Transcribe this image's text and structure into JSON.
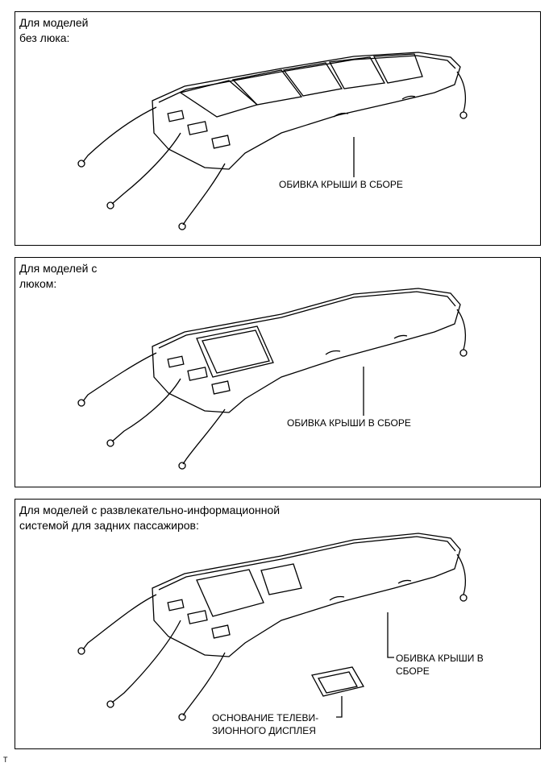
{
  "panels": [
    {
      "title": [
        "Для моделей",
        "без люка:"
      ],
      "callout": [
        "ОБИВКА КРЫШИ В СБОРЕ"
      ]
    },
    {
      "title": [
        "Для моделей с",
        "люком:"
      ],
      "callout": [
        "ОБИВКА КРЫШИ В СБОРЕ"
      ]
    },
    {
      "title": [
        "Для моделей с развлекательно-информационной",
        "системой для задних пассажиров:"
      ],
      "callout": [
        "ОБИВКА КРЫШИ В",
        "СБОРЕ"
      ],
      "callout2": [
        "ОСНОВАНИЕ ТЕЛЕВИ-",
        "ЗИОННОГО ДИСПЛЕЯ"
      ]
    }
  ],
  "footer": "T"
}
